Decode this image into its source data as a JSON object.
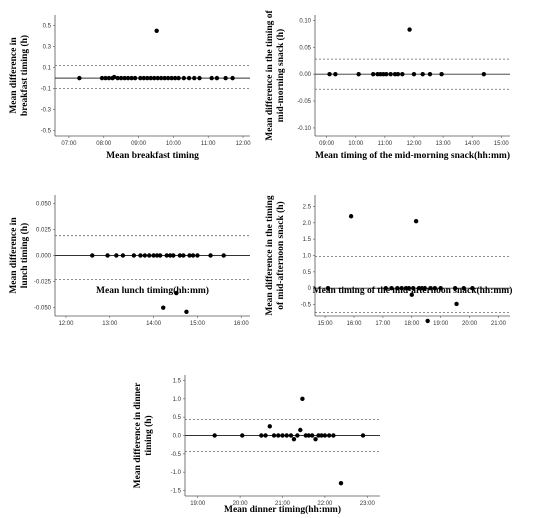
{
  "chart_data": [
    {
      "id": "breakfast",
      "type": "scatter",
      "xlabel": "Mean breakfast timing",
      "ylabel": [
        "Mean difference in",
        "breakfast timing (h)"
      ],
      "x_ticks": [
        "07:00",
        "08:00",
        "09:00",
        "10:00",
        "11:00",
        "12:00"
      ],
      "y_ticks": [
        "0.5",
        "0.3",
        "0.1",
        "-0.1",
        "-0.3",
        "-0.5"
      ],
      "xlim": [
        6.6,
        12.2
      ],
      "ylim": [
        -0.55,
        0.6
      ],
      "mean": 0.0,
      "loa_upper": 0.12,
      "loa_lower": -0.1,
      "points": [
        [
          7.3,
          0.0
        ],
        [
          7.95,
          0.0
        ],
        [
          8.05,
          0.0
        ],
        [
          8.15,
          0.0
        ],
        [
          8.25,
          0.0
        ],
        [
          8.3,
          0.01
        ],
        [
          8.4,
          0.0
        ],
        [
          8.5,
          0.0
        ],
        [
          8.6,
          0.0
        ],
        [
          8.7,
          0.0
        ],
        [
          8.8,
          0.0
        ],
        [
          8.9,
          0.0
        ],
        [
          9.05,
          0.0
        ],
        [
          9.15,
          0.0
        ],
        [
          9.25,
          0.0
        ],
        [
          9.35,
          0.0
        ],
        [
          9.45,
          0.0
        ],
        [
          9.52,
          0.45
        ],
        [
          9.55,
          0.0
        ],
        [
          9.65,
          0.0
        ],
        [
          9.75,
          0.0
        ],
        [
          9.85,
          0.0
        ],
        [
          9.95,
          0.0
        ],
        [
          10.05,
          0.0
        ],
        [
          10.15,
          0.0
        ],
        [
          10.3,
          0.0
        ],
        [
          10.45,
          0.0
        ],
        [
          10.6,
          0.0
        ],
        [
          10.75,
          0.0
        ],
        [
          11.1,
          0.0
        ],
        [
          11.25,
          0.0
        ],
        [
          11.5,
          0.0
        ],
        [
          11.7,
          0.0
        ]
      ]
    },
    {
      "id": "mid-morning",
      "type": "scatter",
      "xlabel": "Mean timing of the mid-morning snack(hh:mm)",
      "ylabel": [
        "Mean difference in the timing of",
        "mid-morning snack (h)"
      ],
      "x_ticks": [
        "09:00",
        "10:00",
        "11:00",
        "12:00",
        "13:00",
        "14:00",
        "15:00"
      ],
      "y_ticks": [
        "0.10",
        "0.05",
        "0.00",
        "-0.05",
        "-0.10"
      ],
      "xlim": [
        8.6,
        15.3
      ],
      "ylim": [
        -0.115,
        0.11
      ],
      "mean": 0.0,
      "loa_upper": 0.028,
      "loa_lower": -0.028,
      "points": [
        [
          9.1,
          0.0
        ],
        [
          9.3,
          0.0
        ],
        [
          10.1,
          0.0
        ],
        [
          10.6,
          0.0
        ],
        [
          10.75,
          0.0
        ],
        [
          10.85,
          0.0
        ],
        [
          10.95,
          0.0
        ],
        [
          11.05,
          0.0
        ],
        [
          11.2,
          0.0
        ],
        [
          11.35,
          0.0
        ],
        [
          11.45,
          0.0
        ],
        [
          11.6,
          0.0
        ],
        [
          11.85,
          0.083
        ],
        [
          12.0,
          0.0
        ],
        [
          12.3,
          0.0
        ],
        [
          12.55,
          0.0
        ],
        [
          12.95,
          0.0
        ],
        [
          14.4,
          0.0
        ]
      ]
    },
    {
      "id": "lunch",
      "type": "scatter",
      "xlabel": "Mean lunch timing(hh:mm)",
      "ylabel": [
        "Mean difference in",
        "lunch timing (h)"
      ],
      "x_ticks": [
        "12:00",
        "13:00",
        "14:00",
        "15:00",
        "16:00"
      ],
      "y_ticks": [
        "0.050",
        "0.025",
        "0.000",
        "-0.025",
        "-0.050"
      ],
      "xlim": [
        11.75,
        16.2
      ],
      "ylim": [
        -0.058,
        0.058
      ],
      "mean": 0.0,
      "loa_upper": 0.019,
      "loa_lower": -0.023,
      "points": [
        [
          12.6,
          0.0
        ],
        [
          12.95,
          0.0
        ],
        [
          13.15,
          0.0
        ],
        [
          13.3,
          0.0
        ],
        [
          13.55,
          0.0
        ],
        [
          13.7,
          0.0
        ],
        [
          13.8,
          0.0
        ],
        [
          13.9,
          0.0
        ],
        [
          14.0,
          0.0
        ],
        [
          14.08,
          0.0
        ],
        [
          14.15,
          0.0
        ],
        [
          14.22,
          -0.05
        ],
        [
          14.3,
          0.0
        ],
        [
          14.38,
          0.0
        ],
        [
          14.45,
          0.0
        ],
        [
          14.52,
          -0.036
        ],
        [
          14.6,
          0.0
        ],
        [
          14.68,
          0.0
        ],
        [
          14.75,
          -0.054
        ],
        [
          14.82,
          0.0
        ],
        [
          14.9,
          0.0
        ],
        [
          15.0,
          0.0
        ],
        [
          15.3,
          0.0
        ],
        [
          15.6,
          0.0
        ]
      ]
    },
    {
      "id": "mid-afternoon",
      "type": "scatter",
      "xlabel": "Mean timing of the mid-afternoon snack(hh:mm)",
      "ylabel": [
        "Mean difference in the timing",
        "of mid-afternoon snack (h)"
      ],
      "x_ticks": [
        "15:00",
        "16:00",
        "17:00",
        "18:00",
        "19:00",
        "20:00",
        "21:00"
      ],
      "y_ticks": [
        "2.5",
        "2.0",
        "1.5",
        "1.0",
        "0.5",
        "0",
        "-0.5"
      ],
      "xlim": [
        14.65,
        21.4
      ],
      "ylim": [
        -0.85,
        2.85
      ],
      "mean": 0.0,
      "loa_upper": 0.97,
      "loa_lower": -0.74,
      "points": [
        [
          15.1,
          0.0
        ],
        [
          15.9,
          2.2
        ],
        [
          17.1,
          0.0
        ],
        [
          17.3,
          0.0
        ],
        [
          17.5,
          0.0
        ],
        [
          17.65,
          0.0
        ],
        [
          17.8,
          0.0
        ],
        [
          17.9,
          0.0
        ],
        [
          18.0,
          -0.2
        ],
        [
          18.05,
          0.0
        ],
        [
          18.15,
          2.05
        ],
        [
          18.25,
          0.0
        ],
        [
          18.35,
          0.0
        ],
        [
          18.45,
          0.0
        ],
        [
          18.55,
          -1.0
        ],
        [
          18.65,
          0.0
        ],
        [
          18.8,
          0.0
        ],
        [
          19.0,
          0.0
        ],
        [
          19.5,
          0.0
        ],
        [
          19.55,
          -0.48
        ],
        [
          19.8,
          0.0
        ],
        [
          20.1,
          0.0
        ]
      ]
    },
    {
      "id": "dinner",
      "type": "scatter",
      "xlabel": "Mean dinner timing(hh:mm)",
      "ylabel": [
        "Mean difference in dinner",
        "timing (h)"
      ],
      "x_ticks": [
        "19:00",
        "20:00",
        "21:00",
        "22:00",
        "23:00"
      ],
      "y_ticks": [
        "1.5",
        "1.0",
        "0.5",
        "0.0",
        "-0.5",
        "-1.0",
        "-1.5"
      ],
      "xlim": [
        18.7,
        23.3
      ],
      "ylim": [
        -1.65,
        1.65
      ],
      "mean": 0.0,
      "loa_upper": 0.44,
      "loa_lower": -0.44,
      "points": [
        [
          19.4,
          0.0
        ],
        [
          20.05,
          0.0
        ],
        [
          20.5,
          0.0
        ],
        [
          20.6,
          0.0
        ],
        [
          20.7,
          0.25
        ],
        [
          20.8,
          0.0
        ],
        [
          20.9,
          0.0
        ],
        [
          21.0,
          0.0
        ],
        [
          21.1,
          0.0
        ],
        [
          21.2,
          0.0
        ],
        [
          21.27,
          -0.1
        ],
        [
          21.35,
          0.0
        ],
        [
          21.42,
          0.15
        ],
        [
          21.47,
          1.0
        ],
        [
          21.55,
          0.0
        ],
        [
          21.62,
          0.0
        ],
        [
          21.7,
          0.0
        ],
        [
          21.78,
          -0.1
        ],
        [
          21.85,
          0.0
        ],
        [
          21.92,
          0.0
        ],
        [
          22.0,
          0.0
        ],
        [
          22.1,
          0.0
        ],
        [
          22.2,
          0.0
        ],
        [
          22.38,
          -1.3
        ],
        [
          22.9,
          0.0
        ]
      ]
    }
  ]
}
